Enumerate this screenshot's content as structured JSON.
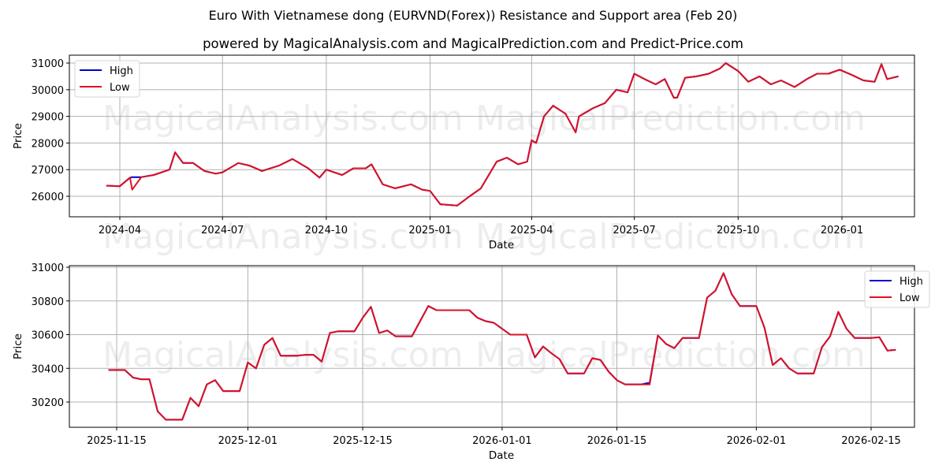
{
  "header": {
    "title": "Euro With Vietnamese dong (EURVND(Forex)) Resistance and Support area (Feb 20)",
    "subtitle": "powered by MagicalAnalysis.com and MagicalPrediction.com and Predict-Price.com"
  },
  "watermarks": [
    "MagicalAnalysis.com",
    "MagicalPrediction.com"
  ],
  "colors": {
    "high": "#0000cc",
    "low": "#dd1122",
    "grid": "#b0b0b0"
  },
  "chart_data": [
    {
      "type": "line",
      "title": "Long-term price (High/Low)",
      "xlabel": "Date",
      "ylabel": "Price",
      "ylim": [
        25250,
        31300
      ],
      "yticks": [
        26000,
        27000,
        28000,
        29000,
        30000,
        31000
      ],
      "xticks": [
        "2024-04",
        "2024-07",
        "2024-10",
        "2025-01",
        "2025-04",
        "2025-07",
        "2025-10",
        "2026-01"
      ],
      "grid": true,
      "legend": {
        "position": "upper left",
        "entries": [
          "High",
          "Low"
        ]
      },
      "x": [
        "2024-03-20",
        "2024-04-01",
        "2024-04-10",
        "2024-04-12",
        "2024-04-20",
        "2024-05-01",
        "2024-05-15",
        "2024-05-20",
        "2024-05-27",
        "2024-06-05",
        "2024-06-15",
        "2024-06-25",
        "2024-07-01",
        "2024-07-15",
        "2024-07-25",
        "2024-08-05",
        "2024-08-20",
        "2024-09-01",
        "2024-09-15",
        "2024-09-25",
        "2024-10-01",
        "2024-10-15",
        "2024-10-25",
        "2024-11-05",
        "2024-11-10",
        "2024-11-20",
        "2024-12-01",
        "2024-12-15",
        "2024-12-25",
        "2025-01-01",
        "2025-01-10",
        "2025-01-25",
        "2025-02-05",
        "2025-02-15",
        "2025-03-01",
        "2025-03-10",
        "2025-03-20",
        "2025-03-28",
        "2025-04-01",
        "2025-04-05",
        "2025-04-12",
        "2025-04-20",
        "2025-05-01",
        "2025-05-10",
        "2025-05-13",
        "2025-05-25",
        "2025-06-05",
        "2025-06-15",
        "2025-06-25",
        "2025-07-01",
        "2025-07-10",
        "2025-07-20",
        "2025-07-28",
        "2025-08-05",
        "2025-08-08",
        "2025-08-15",
        "2025-08-25",
        "2025-09-05",
        "2025-09-15",
        "2025-09-20",
        "2025-10-01",
        "2025-10-10",
        "2025-10-20",
        "2025-10-30",
        "2025-11-08",
        "2025-11-20",
        "2025-12-01",
        "2025-12-10",
        "2025-12-20",
        "2025-12-30",
        "2026-01-10",
        "2026-01-20",
        "2026-01-30",
        "2026-02-05",
        "2026-02-10",
        "2026-02-20"
      ],
      "series": [
        {
          "name": "High",
          "values": [
            26400,
            26380,
            26700,
            26720,
            26720,
            26800,
            27000,
            27650,
            27250,
            27250,
            26950,
            26850,
            26900,
            27250,
            27150,
            26950,
            27150,
            27400,
            27050,
            26700,
            27000,
            26800,
            27050,
            27050,
            27200,
            26450,
            26300,
            26450,
            26250,
            26200,
            25700,
            25650,
            26000,
            26300,
            27300,
            27450,
            27200,
            27300,
            28100,
            28000,
            29000,
            29400,
            29100,
            28400,
            29000,
            29300,
            29500,
            30000,
            29900,
            30600,
            30400,
            30200,
            30400,
            29700,
            29700,
            30450,
            30500,
            30600,
            30800,
            31000,
            30700,
            30300,
            30500,
            30200,
            30350,
            30100,
            30400,
            30600,
            30600,
            30750,
            30550,
            30350,
            30300,
            30960,
            30400,
            30500
          ]
        },
        {
          "name": "Low",
          "values": [
            26400,
            26380,
            26700,
            26250,
            26720,
            26800,
            27000,
            27650,
            27250,
            27250,
            26950,
            26850,
            26900,
            27250,
            27150,
            26950,
            27150,
            27400,
            27050,
            26700,
            27000,
            26800,
            27050,
            27050,
            27200,
            26450,
            26300,
            26450,
            26250,
            26200,
            25700,
            25650,
            26000,
            26300,
            27300,
            27450,
            27200,
            27300,
            28100,
            28000,
            29000,
            29400,
            29100,
            28400,
            29000,
            29300,
            29500,
            30000,
            29900,
            30600,
            30400,
            30200,
            30400,
            29700,
            29700,
            30450,
            30500,
            30600,
            30800,
            31000,
            30700,
            30300,
            30500,
            30200,
            30350,
            30100,
            30400,
            30600,
            30600,
            30750,
            30550,
            30350,
            30300,
            30960,
            30400,
            30500
          ]
        }
      ]
    },
    {
      "type": "line",
      "title": "Recent price (High/Low)",
      "xlabel": "Date",
      "ylabel": "Price",
      "ylim": [
        30050,
        31005
      ],
      "yticks": [
        30200,
        30400,
        30600,
        30800,
        31000
      ],
      "xticks": [
        "2025-11-15",
        "2025-12-01",
        "2025-12-15",
        "2026-01-01",
        "2026-01-15",
        "2026-02-01",
        "2026-02-15"
      ],
      "grid": true,
      "legend": {
        "position": "upper right",
        "entries": [
          "High",
          "Low"
        ]
      },
      "x": [
        "2025-11-14",
        "2025-11-15",
        "2025-11-16",
        "2025-11-17",
        "2025-11-18",
        "2025-11-19",
        "2025-11-20",
        "2025-11-21",
        "2025-11-22",
        "2025-11-23",
        "2025-11-24",
        "2025-11-25",
        "2025-11-26",
        "2025-11-27",
        "2025-11-28",
        "2025-11-29",
        "2025-11-30",
        "2025-12-01",
        "2025-12-02",
        "2025-12-03",
        "2025-12-04",
        "2025-12-05",
        "2025-12-06",
        "2025-12-07",
        "2025-12-08",
        "2025-12-09",
        "2025-12-10",
        "2025-12-11",
        "2025-12-12",
        "2025-12-13",
        "2025-12-14",
        "2025-12-15",
        "2025-12-16",
        "2025-12-17",
        "2025-12-18",
        "2025-12-19",
        "2025-12-20",
        "2025-12-21",
        "2025-12-22",
        "2025-12-23",
        "2025-12-24",
        "2025-12-25",
        "2025-12-26",
        "2025-12-27",
        "2025-12-28",
        "2025-12-29",
        "2025-12-30",
        "2025-12-31",
        "2026-01-01",
        "2026-01-02",
        "2026-01-03",
        "2026-01-04",
        "2026-01-05",
        "2026-01-06",
        "2026-01-07",
        "2026-01-08",
        "2026-01-09",
        "2026-01-10",
        "2026-01-11",
        "2026-01-12",
        "2026-01-13",
        "2026-01-14",
        "2026-01-15",
        "2026-01-16",
        "2026-01-17",
        "2026-01-18",
        "2026-01-19",
        "2026-01-20",
        "2026-01-21",
        "2026-01-22",
        "2026-01-23",
        "2026-01-24",
        "2026-01-25",
        "2026-01-26",
        "2026-01-27",
        "2026-01-28",
        "2026-01-29",
        "2026-01-30",
        "2026-01-31",
        "2026-02-01",
        "2026-02-02",
        "2026-02-03",
        "2026-02-04",
        "2026-02-05",
        "2026-02-06",
        "2026-02-07",
        "2026-02-08",
        "2026-02-09",
        "2026-02-10",
        "2026-02-11",
        "2026-02-12",
        "2026-02-13",
        "2026-02-14",
        "2026-02-15",
        "2026-02-16",
        "2026-02-17",
        "2026-02-18"
      ],
      "series": [
        {
          "name": "High",
          "values": [
            30390,
            30390,
            30390,
            30345,
            30335,
            30335,
            30145,
            30095,
            30095,
            30095,
            30225,
            30175,
            30305,
            30330,
            30265,
            30265,
            30265,
            30435,
            30400,
            30540,
            30580,
            30475,
            30475,
            30475,
            30480,
            30480,
            30440,
            30610,
            30620,
            30620,
            30620,
            30700,
            30765,
            30610,
            30625,
            30590,
            30590,
            30590,
            30680,
            30770,
            30745,
            30745,
            30745,
            30745,
            30745,
            30700,
            30680,
            30670,
            30635,
            30600,
            30600,
            30600,
            30465,
            30530,
            30490,
            30455,
            30370,
            30370,
            30370,
            30460,
            30450,
            30380,
            30330,
            30305,
            30305,
            30305,
            30315,
            30595,
            30545,
            30520,
            30580,
            30580,
            30580,
            30820,
            30860,
            30965,
            30840,
            30770,
            30770,
            30770,
            30640,
            30420,
            30460,
            30400,
            30370,
            30370,
            30370,
            30525,
            30590,
            30735,
            30635,
            30580,
            30580,
            30580,
            30585,
            30505,
            30510
          ]
        },
        {
          "name": "Low",
          "values": [
            30390,
            30390,
            30390,
            30345,
            30335,
            30335,
            30145,
            30095,
            30095,
            30095,
            30225,
            30175,
            30305,
            30330,
            30265,
            30265,
            30265,
            30435,
            30400,
            30540,
            30580,
            30475,
            30475,
            30475,
            30480,
            30480,
            30440,
            30610,
            30620,
            30620,
            30620,
            30700,
            30765,
            30610,
            30625,
            30590,
            30590,
            30590,
            30680,
            30770,
            30745,
            30745,
            30745,
            30745,
            30745,
            30700,
            30680,
            30670,
            30635,
            30600,
            30600,
            30600,
            30465,
            30530,
            30490,
            30455,
            30370,
            30370,
            30370,
            30460,
            30450,
            30380,
            30330,
            30305,
            30305,
            30305,
            30305,
            30595,
            30545,
            30520,
            30580,
            30580,
            30580,
            30820,
            30860,
            30965,
            30840,
            30770,
            30770,
            30770,
            30640,
            30420,
            30460,
            30400,
            30370,
            30370,
            30370,
            30525,
            30590,
            30735,
            30635,
            30580,
            30580,
            30580,
            30585,
            30505,
            30510
          ]
        }
      ]
    }
  ]
}
